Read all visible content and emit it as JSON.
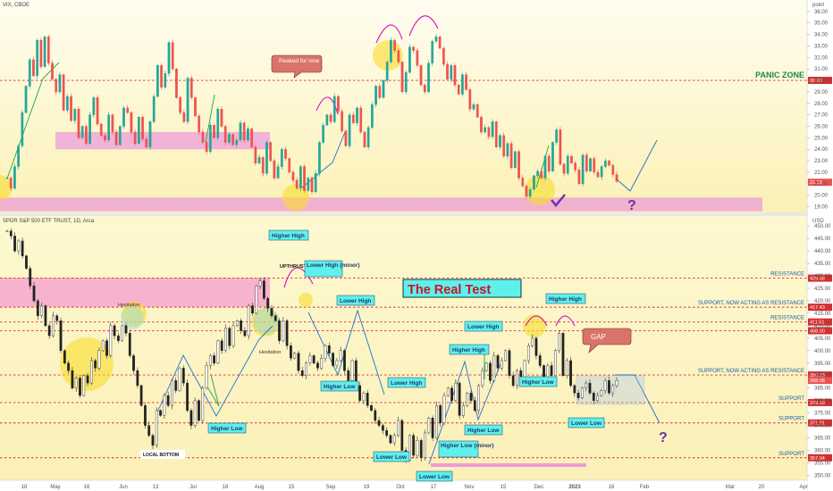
{
  "chart_data": [
    {
      "type": "candlestick",
      "title": "VIX, CBOE",
      "axis_unit": "point",
      "y_ticks": [
        19,
        20,
        21,
        22,
        23,
        24,
        25,
        26,
        27,
        28,
        29,
        30,
        31,
        32,
        33,
        34,
        35,
        36
      ],
      "ylim": [
        18.5,
        37
      ],
      "current_value": "21.13",
      "levels": [
        {
          "value": 30.0,
          "label": "30.00",
          "text": "PANIC ZONE",
          "color": "#d32f2f"
        }
      ],
      "zones": [
        {
          "from": 24,
          "to": 25.5,
          "color": "#e77be3"
        },
        {
          "from": 18.6,
          "to": 19.8,
          "color": "#e77be3"
        }
      ],
      "annotations": [
        {
          "text": "Peaked for now"
        },
        {
          "text": "?"
        }
      ],
      "closes": [
        21.5,
        20.6,
        22.5,
        24.3,
        27.2,
        29.5,
        31.8,
        30.4,
        33.5,
        31.2,
        33.8,
        31.5,
        30.1,
        29.0,
        30.5,
        27.4,
        28.6,
        26.5,
        27.5,
        25.0,
        26.0,
        24.5,
        27.0,
        28.5,
        26.2,
        25.2,
        24.8,
        27.0,
        25.5,
        24.4,
        26.0,
        27.6,
        27.2,
        25.5,
        24.5,
        26.8,
        24.9,
        24.2,
        26.4,
        28.6,
        31.3,
        29.4,
        30.6,
        33.3,
        31.0,
        28.5,
        27.2,
        26.4,
        30.2,
        28.5,
        26.9,
        25.5,
        24.6,
        23.8,
        26.1,
        25.0,
        27.5,
        26.0,
        24.6,
        25.3,
        24.4,
        24.8,
        26.3,
        24.8,
        25.8,
        24.2,
        22.8,
        23.3,
        21.9,
        24.6,
        23.0,
        21.5,
        22.5,
        24.0,
        23.2,
        22.0,
        21.3,
        20.6,
        22.5,
        20.4,
        21.5,
        20.3,
        21.9,
        24.6,
        26.1,
        27.0,
        26.4,
        28.6,
        27.3,
        25.6,
        24.3,
        27.0,
        26.3,
        27.6,
        25.5,
        24.2,
        25.9,
        27.9,
        29.5,
        28.5,
        30.0,
        31.6,
        33.5,
        32.6,
        31.6,
        29.0,
        30.7,
        32.9,
        32.6,
        31.3,
        29.6,
        29.0,
        31.5,
        33.4,
        33.8,
        32.8,
        31.4,
        30.1,
        31.3,
        29.6,
        28.8,
        30.5,
        29.2,
        27.5,
        27.9,
        26.8,
        25.5,
        25.9,
        25.1,
        26.4,
        24.2,
        25.2,
        23.4,
        24.5,
        22.4,
        23.8,
        21.5,
        20.8,
        19.9,
        20.5,
        21.7,
        22.1,
        21.5,
        23.4,
        22.1,
        24.6,
        25.7,
        22.7,
        21.9,
        23.4,
        22.8,
        22.2,
        21.0,
        23.5,
        22.1,
        23.2,
        22.0,
        21.6,
        22.5,
        23.0,
        22.6,
        21.8,
        21.2
      ],
      "series": [
        {
          "name": "VIX, CBOE"
        }
      ]
    },
    {
      "type": "candlestick",
      "title": "SPDR S&P 500 ETF TRUST, 1D, Arca",
      "axis_unit": "USD",
      "y_ticks": [
        350,
        355,
        360,
        365,
        370,
        375,
        380,
        385,
        390,
        395,
        400,
        405,
        410,
        415,
        420,
        425,
        430,
        435,
        440,
        445,
        450
      ],
      "ylim": [
        348,
        454
      ],
      "current_value": "388.08",
      "levels": [
        {
          "value": 429.08,
          "label": "429.08",
          "text": "RESISTANCE",
          "color": "#d32f2f"
        },
        {
          "value": 417.43,
          "label": "417.43",
          "text": "SUPPORT, NOW ACTING AS RESISTANCE",
          "color": "#d32f2f"
        },
        {
          "value": 411.51,
          "label": "411.51",
          "text": "RESISTANCE",
          "color": "#d32f2f"
        },
        {
          "value": 408.0,
          "label": "408.00",
          "text": "",
          "color": "#d32f2f"
        },
        {
          "value": 390.23,
          "label": "390.23",
          "text": "SUPPORT, NOW ACTING AS RESISTANCE",
          "color": "#d32f2f"
        },
        {
          "value": 379.19,
          "label": "379.19",
          "text": "SUPPORT",
          "color": "#d32f2f"
        },
        {
          "value": 371.01,
          "label": "371.01",
          "text": "SUPPORT",
          "color": "#d32f2f"
        },
        {
          "value": 357.04,
          "label": "357.04",
          "text": "SUPPORT",
          "color": "#d32f2f"
        }
      ],
      "annotations": [
        {
          "text": "The Real Test"
        },
        {
          "text": "Higher High"
        },
        {
          "text": "UPTHRUST"
        },
        {
          "text": "Lower High (minor)"
        },
        {
          "text": "Lower High"
        },
        {
          "text": "Hesitation"
        },
        {
          "text": "Higher Low"
        },
        {
          "text": "LOCAL BOTTOM"
        },
        {
          "text": "Lower Low"
        },
        {
          "text": "Higher Low (minor)"
        },
        {
          "text": "GAP"
        },
        {
          "text": "?"
        }
      ],
      "closes": [
        448,
        446,
        440,
        444,
        438,
        433,
        426,
        420,
        414,
        418,
        410,
        406,
        414,
        412,
        400,
        395,
        392,
        385,
        389,
        382,
        390,
        387,
        396,
        393,
        400,
        404,
        398,
        410,
        406,
        404,
        410,
        407,
        398,
        392,
        386,
        378,
        370,
        366,
        362,
        376,
        374,
        382,
        378,
        388,
        384,
        393,
        387,
        376,
        370,
        380,
        372,
        385,
        394,
        398,
        395,
        404,
        400,
        409,
        402,
        410,
        412,
        408,
        406,
        418,
        415,
        426,
        428,
        421,
        417,
        414,
        412,
        404,
        412,
        402,
        397,
        399,
        392,
        390,
        395,
        398,
        395,
        393,
        397,
        402,
        399,
        394,
        396,
        400,
        392,
        388,
        396,
        386,
        380,
        383,
        378,
        376,
        372,
        370,
        368,
        366,
        363,
        366,
        372,
        360,
        356,
        366,
        358,
        364,
        357,
        367,
        373,
        365,
        378,
        371,
        382,
        385,
        380,
        387,
        374,
        378,
        383,
        380,
        376,
        386,
        392,
        395,
        388,
        398,
        393,
        396,
        400,
        390,
        386,
        392,
        388,
        396,
        402,
        405,
        398,
        394,
        389,
        394,
        390,
        400,
        407,
        390,
        396,
        386,
        383,
        381,
        385,
        387,
        383,
        380,
        382,
        384,
        388,
        383,
        386,
        388
      ],
      "series": [
        {
          "name": "SPDR S&P 500 ETF TRUST, 1D, Arca"
        }
      ]
    }
  ],
  "x_axis": {
    "labels": [
      "18",
      "May",
      "16",
      "Jun",
      "13",
      "Jul",
      "18",
      "Aug",
      "15",
      "Sep",
      "19",
      "Oct",
      "17",
      "Nov",
      "15",
      "Dec",
      "2023",
      "16",
      "Feb",
      "Mar",
      "20",
      "Apr"
    ]
  },
  "legend_values": {
    "top": "point",
    "bottom": "USD"
  }
}
